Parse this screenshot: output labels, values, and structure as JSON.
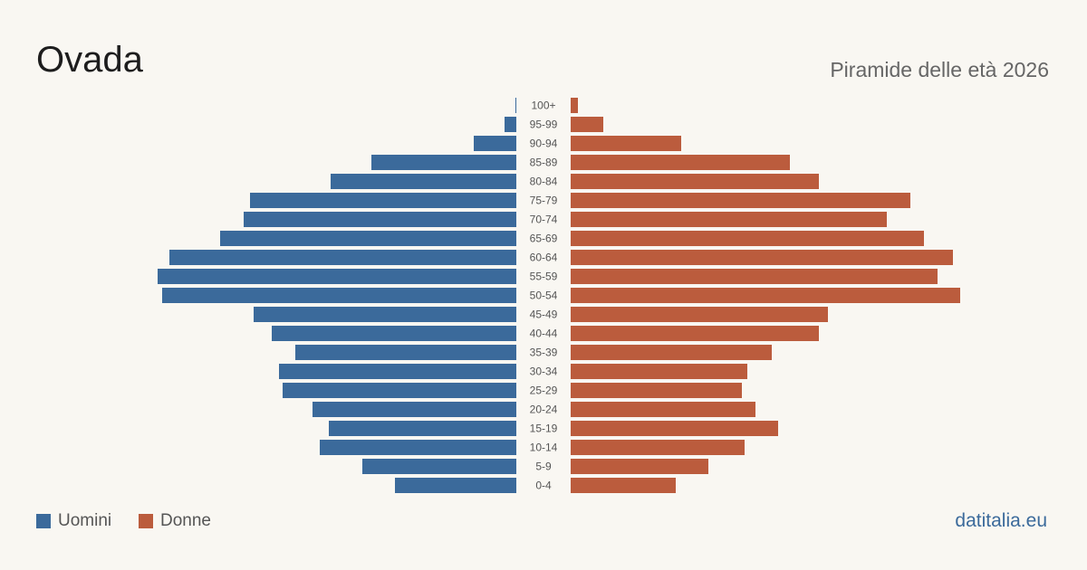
{
  "title": "Ovada",
  "subtitle": "Piramide delle età 2026",
  "source": "datitalia.eu",
  "legend": {
    "men_label": "Uomini",
    "women_label": "Donne"
  },
  "colors": {
    "men": "#3b6a9b",
    "women": "#bb5c3d",
    "age_label": "#555555"
  },
  "chart_data": {
    "type": "bar",
    "orientation": "horizontal-pyramid",
    "categories": [
      "100+",
      "95-99",
      "90-94",
      "85-89",
      "80-84",
      "75-79",
      "70-74",
      "65-69",
      "60-64",
      "55-59",
      "50-54",
      "45-49",
      "40-44",
      "35-39",
      "30-34",
      "25-29",
      "20-24",
      "15-19",
      "10-14",
      "5-9",
      "0-4"
    ],
    "series": [
      {
        "name": "Uomini",
        "values": [
          1,
          13,
          47,
          160,
          205,
          294,
          301,
          327,
          383,
          396,
          391,
          290,
          270,
          244,
          262,
          258,
          225,
          207,
          217,
          170,
          134
        ]
      },
      {
        "name": "Donne",
        "values": [
          8,
          36,
          122,
          242,
          274,
          375,
          349,
          390,
          422,
          405,
          430,
          284,
          274,
          222,
          195,
          189,
          204,
          229,
          192,
          152,
          116
        ]
      }
    ],
    "legend": "bottom-left",
    "grid": false
  }
}
